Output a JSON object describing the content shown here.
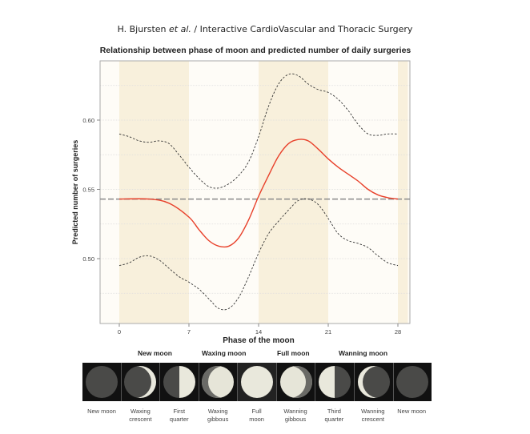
{
  "header": {
    "authors": "H. Bjursten",
    "etal": "et al.",
    "journal": "/ Interactive CardioVascular and Thoracic Surgery"
  },
  "chart_data": {
    "type": "line",
    "title": "Relationship between phase of moon and predicted number of daily surgeries",
    "xlabel": "Phase of the moon",
    "ylabel": "Predicted number of surgeries",
    "xlim": [
      -2,
      29
    ],
    "ylim": [
      0.455,
      0.645
    ],
    "xticks": [
      0,
      7,
      14,
      21,
      28
    ],
    "yticks": [
      0.5,
      0.55,
      0.6
    ],
    "ytick_labels": [
      "0.50",
      "0.55",
      "0.60"
    ],
    "grid": "horizontal dotted",
    "shaded_bands": [
      [
        0,
        7
      ],
      [
        14,
        21
      ],
      [
        28,
        29
      ]
    ],
    "reference_line": 0.543,
    "colors": {
      "predicted": "#e8402a",
      "ci": "#333333",
      "reference": "#888888",
      "band": "#f8f0dc",
      "background": "#fefcf7"
    },
    "series": [
      {
        "role": "predicted",
        "x": [
          0,
          3,
          5,
          7,
          8,
          9,
          10,
          11,
          12,
          13,
          14,
          15,
          16,
          17,
          18,
          19,
          20,
          21,
          22,
          23,
          24,
          25,
          26,
          27,
          28
        ],
        "y": [
          0.543,
          0.543,
          0.54,
          0.53,
          0.521,
          0.513,
          0.509,
          0.509,
          0.515,
          0.528,
          0.545,
          0.56,
          0.574,
          0.583,
          0.586,
          0.585,
          0.579,
          0.572,
          0.566,
          0.561,
          0.556,
          0.55,
          0.546,
          0.544,
          0.543
        ]
      },
      {
        "role": "upper-ci",
        "x": [
          0,
          1,
          2,
          3,
          4,
          5,
          6,
          7,
          8,
          9,
          10,
          11,
          12,
          13,
          14,
          15,
          16,
          17,
          18,
          19,
          20,
          21,
          22,
          23,
          24,
          25,
          26,
          27,
          28
        ],
        "y": [
          0.59,
          0.588,
          0.585,
          0.584,
          0.585,
          0.583,
          0.575,
          0.566,
          0.558,
          0.552,
          0.551,
          0.554,
          0.56,
          0.57,
          0.588,
          0.61,
          0.626,
          0.633,
          0.632,
          0.626,
          0.622,
          0.62,
          0.615,
          0.607,
          0.597,
          0.59,
          0.589,
          0.59,
          0.59
        ]
      },
      {
        "role": "lower-ci",
        "x": [
          0,
          1,
          2,
          3,
          4,
          5,
          6,
          7,
          8,
          9,
          10,
          11,
          12,
          13,
          14,
          15,
          16,
          17,
          18,
          19,
          20,
          21,
          22,
          23,
          24,
          25,
          26,
          27,
          28
        ],
        "y": [
          0.495,
          0.497,
          0.501,
          0.502,
          0.499,
          0.493,
          0.487,
          0.483,
          0.478,
          0.471,
          0.464,
          0.464,
          0.472,
          0.487,
          0.504,
          0.518,
          0.527,
          0.535,
          0.542,
          0.543,
          0.539,
          0.529,
          0.518,
          0.513,
          0.511,
          0.508,
          0.502,
          0.497,
          0.495
        ]
      }
    ]
  },
  "moon_groups": [
    "New moon",
    "Waxing moon",
    "Full moon",
    "Wanning moon"
  ],
  "moon_phases": [
    {
      "line1": "New moon",
      "line2": ""
    },
    {
      "line1": "Waxing",
      "line2": "crescent"
    },
    {
      "line1": "First",
      "line2": "quarter"
    },
    {
      "line1": "Waxing",
      "line2": "gibbous"
    },
    {
      "line1": "Full",
      "line2": "moon"
    },
    {
      "line1": "Wanning",
      "line2": "gibbous"
    },
    {
      "line1": "Third",
      "line2": "quarter"
    },
    {
      "line1": "Wanning",
      "line2": "crescent"
    },
    {
      "line1": "New moon",
      "line2": ""
    }
  ]
}
